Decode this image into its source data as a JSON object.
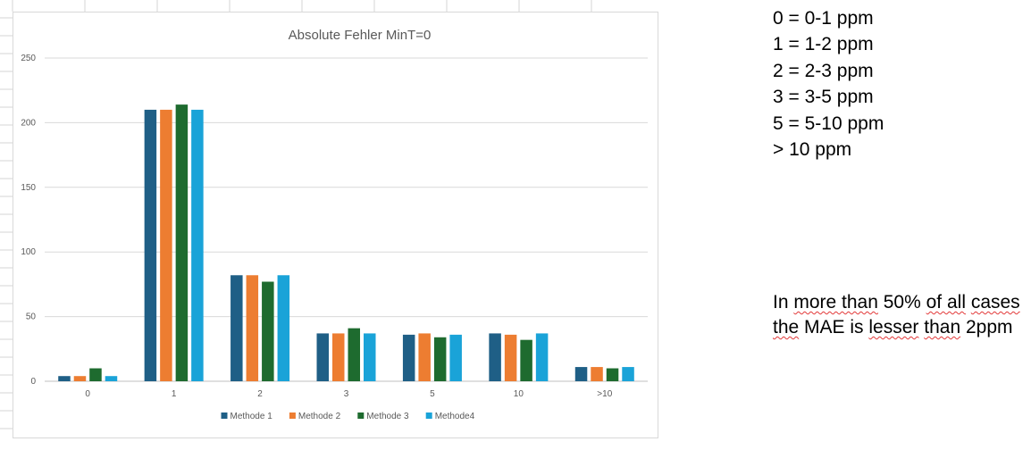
{
  "chart_data": {
    "type": "bar",
    "title": "Absolute Fehler MinT=0",
    "xlabel": "",
    "ylabel": "",
    "categories": [
      "0",
      "1",
      "2",
      "3",
      "5",
      "10",
      ">10"
    ],
    "series": [
      {
        "name": "Methode 1",
        "color": "#1f5f86",
        "values": [
          4,
          210,
          82,
          37,
          36,
          37,
          11
        ]
      },
      {
        "name": "Methode 2",
        "color": "#ed7d31",
        "values": [
          4,
          210,
          82,
          37,
          37,
          36,
          11
        ]
      },
      {
        "name": "Methode 3",
        "color": "#1e6b2f",
        "values": [
          10,
          214,
          77,
          41,
          34,
          32,
          10
        ]
      },
      {
        "name": "Methode4",
        "color": "#1aa3d8",
        "values": [
          4,
          210,
          82,
          37,
          36,
          37,
          11
        ]
      }
    ],
    "ylim": [
      0,
      250
    ],
    "yticks": [
      0,
      50,
      100,
      150,
      200,
      250
    ],
    "grid": true,
    "legend": "bottom"
  },
  "legend_notes": [
    "0 = 0-1 ppm",
    "1 = 1-2 ppm",
    "2 = 2-3 ppm",
    "3 = 3-5 ppm",
    "5 = 5-10 ppm",
    "> 10 ppm"
  ],
  "conclusion": {
    "words": [
      {
        "t": "In ",
        "sq": false
      },
      {
        "t": "more than",
        "sq": true
      },
      {
        "t": " 50% ",
        "sq": false
      },
      {
        "t": "of all",
        "sq": true
      },
      {
        "t": " ",
        "sq": false
      },
      {
        "t": "cases the",
        "sq": true
      },
      {
        "t": " MAE is ",
        "sq": false
      },
      {
        "t": "lesser",
        "sq": true
      },
      {
        "t": " ",
        "sq": false
      },
      {
        "t": "than",
        "sq": true
      },
      {
        "t": " 2ppm",
        "sq": false
      }
    ]
  }
}
